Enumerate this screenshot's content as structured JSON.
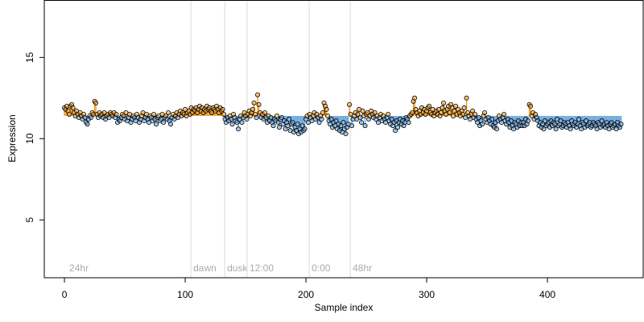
{
  "chart_data": {
    "type": "lollipop-scatter",
    "xlabel": "Sample index",
    "ylabel": "Expression",
    "xlim": [
      -16.7,
      479.3
    ],
    "ylim": [
      1.44,
      18.51
    ],
    "xticks": [
      0,
      100,
      200,
      300,
      400
    ],
    "yticks": [
      5,
      10,
      15
    ],
    "baseline": 11.4,
    "above_color": "#f0a030",
    "below_color": "#6fa8dc",
    "annotations": [
      {
        "text": "24hr",
        "x": 2,
        "line": false
      },
      {
        "text": "dawn",
        "x": 104.7,
        "line": true
      },
      {
        "text": "dusk",
        "x": 132.7,
        "line": true
      },
      {
        "text": "12:00",
        "x": 151.3,
        "line": true
      },
      {
        "text": "0:00",
        "x": 202.7,
        "line": true
      },
      {
        "text": "48hr",
        "x": 236.7,
        "line": true
      }
    ],
    "values": [
      11.9,
      11.8,
      12.0,
      11.7,
      11.5,
      12.0,
      12.1,
      11.9,
      11.6,
      11.4,
      11.7,
      11.5,
      11.3,
      11.6,
      11.4,
      11.2,
      11.5,
      11.3,
      11.0,
      10.9,
      11.2,
      11.4,
      11.3,
      11.6,
      11.5,
      12.3,
      12.2,
      11.5,
      11.3,
      11.6,
      11.4,
      11.5,
      11.3,
      11.6,
      11.2,
      11.4,
      11.5,
      11.3,
      11.6,
      11.5,
      11.4,
      11.6,
      11.3,
      11.5,
      11.0,
      11.2,
      11.1,
      11.3,
      11.5,
      11.4,
      11.2,
      11.6,
      11.1,
      11.3,
      11.5,
      11.0,
      11.2,
      11.4,
      11.3,
      11.1,
      11.5,
      11.3,
      11.0,
      11.2,
      11.4,
      11.6,
      11.1,
      11.3,
      11.5,
      11.2,
      11.0,
      11.4,
      11.3,
      11.1,
      11.5,
      11.2,
      10.9,
      11.3,
      11.4,
      11.1,
      11.2,
      11.5,
      11.0,
      11.3,
      11.4,
      11.2,
      11.6,
      11.1,
      10.9,
      11.3,
      11.5,
      11.2,
      11.4,
      11.6,
      11.3,
      11.5,
      11.7,
      11.4,
      11.6,
      11.5,
      11.8,
      11.4,
      11.6,
      11.7,
      11.5,
      11.9,
      11.6,
      11.8,
      11.7,
      11.9,
      11.6,
      11.8,
      12.0,
      11.7,
      11.9,
      11.6,
      11.8,
      11.7,
      12.0,
      11.8,
      11.9,
      11.7,
      11.6,
      11.9,
      11.8,
      11.7,
      12.0,
      11.8,
      11.6,
      11.9,
      11.7,
      11.8,
      11.5,
      11.2,
      11.0,
      11.3,
      11.1,
      11.4,
      11.2,
      10.9,
      11.5,
      11.3,
      11.1,
      11.0,
      10.6,
      11.2,
      11.4,
      11.0,
      11.3,
      11.6,
      11.4,
      11.2,
      11.5,
      11.7,
      11.4,
      11.6,
      11.8,
      12.2,
      11.5,
      11.3,
      12.7,
      12.1,
      11.6,
      11.3,
      11.5,
      11.2,
      11.6,
      11.3,
      11.0,
      11.4,
      11.1,
      11.3,
      11.0,
      10.8,
      11.2,
      11.1,
      11.4,
      11.0,
      10.7,
      11.2,
      11.3,
      10.9,
      11.1,
      10.6,
      11.0,
      10.8,
      11.2,
      10.5,
      10.9,
      11.0,
      10.4,
      10.7,
      10.5,
      10.9,
      10.3,
      10.6,
      10.4,
      10.8,
      10.5,
      10.6,
      11.2,
      11.4,
      11.0,
      11.5,
      11.3,
      11.1,
      11.4,
      11.6,
      11.2,
      11.5,
      11.3,
      11.0,
      11.4,
      11.2,
      11.6,
      12.2,
      12.0,
      11.8,
      11.4,
      11.1,
      10.9,
      11.2,
      10.7,
      11.0,
      10.8,
      11.1,
      10.6,
      10.9,
      10.5,
      10.8,
      10.4,
      11.0,
      10.6,
      10.3,
      10.7,
      10.9,
      12.1,
      11.5,
      10.8,
      11.2,
      11.4,
      11.6,
      11.2,
      11.5,
      11.8,
      11.3,
      11.0,
      11.7,
      11.4,
      10.8,
      11.5,
      11.6,
      11.2,
      11.4,
      11.7,
      11.5,
      11.3,
      11.6,
      11.2,
      11.4,
      11.0,
      11.3,
      11.5,
      11.1,
      11.4,
      11.2,
      11.0,
      11.3,
      11.5,
      11.1,
      10.9,
      11.2,
      10.8,
      11.0,
      10.5,
      11.1,
      10.7,
      11.0,
      11.2,
      10.9,
      11.1,
      10.8,
      11.0,
      11.3,
      11.2,
      11.0,
      11.4,
      11.5,
      11.6,
      12.3,
      12.5,
      11.8,
      11.6,
      11.4,
      11.7,
      11.5,
      11.9,
      11.6,
      11.8,
      11.5,
      11.7,
      11.9,
      12.0,
      11.6,
      11.5,
      11.8,
      11.4,
      11.6,
      11.7,
      11.5,
      11.8,
      11.4,
      11.6,
      11.9,
      12.2,
      11.7,
      11.5,
      11.8,
      12.0,
      11.6,
      12.1,
      11.9,
      11.4,
      11.7,
      12.0,
      11.5,
      11.8,
      11.6,
      11.4,
      11.7,
      11.5,
      11.9,
      11.3,
      12.5,
      11.6,
      11.4,
      11.2,
      11.5,
      11.7,
      11.3,
      11.5,
      11.2,
      11.0,
      11.3,
      10.8,
      11.1,
      10.9,
      11.4,
      11.6,
      11.2,
      11.0,
      11.3,
      11.1,
      10.9,
      11.2,
      10.8,
      10.7,
      11.0,
      10.6,
      11.1,
      11.4,
      11.2,
      11.0,
      11.3,
      11.5,
      11.1,
      10.9,
      11.2,
      11.0,
      10.7,
      11.1,
      10.8,
      10.6,
      11.0,
      10.9,
      10.7,
      11.1,
      10.8,
      11.0,
      10.8,
      11.0,
      10.8,
      11.2,
      10.9,
      11.1,
      12.1,
      12.0,
      11.4,
      11.6,
      11.2,
      11.5,
      11.3,
      11.1,
      10.8,
      11.0,
      10.7,
      10.9,
      10.6,
      11.1,
      10.8,
      10.9,
      11.0,
      10.7,
      11.1,
      10.8,
      11.0,
      10.9,
      10.6,
      11.2,
      10.8,
      10.9,
      11.1,
      10.7,
      10.8,
      11.0,
      10.9,
      10.7,
      11.0,
      10.8,
      10.6,
      11.1,
      10.9,
      10.8,
      11.0,
      10.7,
      10.9,
      11.2,
      10.8,
      10.6,
      11.0,
      10.9,
      10.7,
      11.1,
      10.8,
      10.9,
      11.0,
      10.7,
      10.8,
      11.0,
      10.9,
      10.8,
      10.6,
      11.0,
      10.9,
      10.7,
      11.1,
      10.8,
      10.9,
      10.7,
      11.0,
      10.8,
      10.6,
      10.9,
      11.0,
      10.7,
      10.8,
      10.9,
      10.6,
      11.0,
      10.8,
      10.7,
      10.9
    ]
  }
}
